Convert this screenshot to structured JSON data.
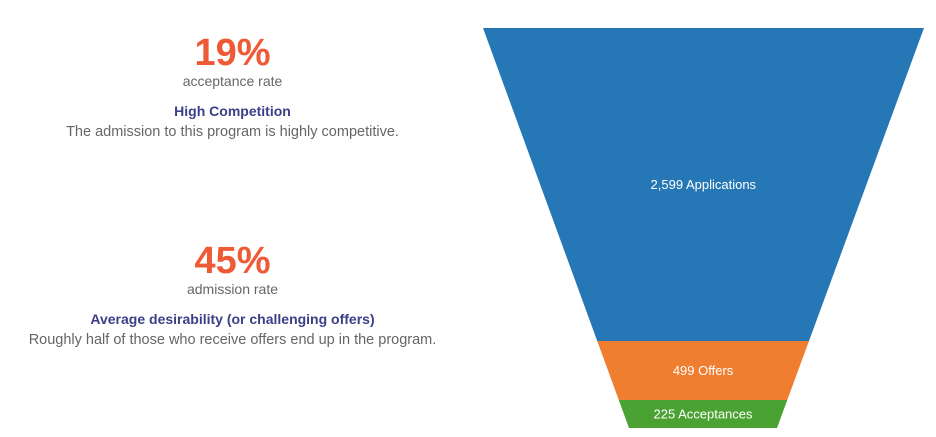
{
  "stats": [
    {
      "value": "19%",
      "label": "acceptance rate",
      "heading": "High Competition",
      "description": "The admission to this program is highly competitive."
    },
    {
      "value": "45%",
      "label": "admission rate",
      "heading": "Average desirability (or challenging offers)",
      "description": "Roughly half of those who receive offers end up in the program."
    }
  ],
  "chart_data": {
    "type": "funnel",
    "stages": [
      {
        "name": "Applications",
        "value": 2599,
        "label": "2,599 Applications",
        "color": "#2578b5"
      },
      {
        "name": "Offers",
        "value": 499,
        "label": "499 Offers",
        "color": "#f07e30"
      },
      {
        "name": "Acceptances",
        "value": 225,
        "label": "225 Acceptances",
        "color": "#4aa232"
      }
    ]
  }
}
